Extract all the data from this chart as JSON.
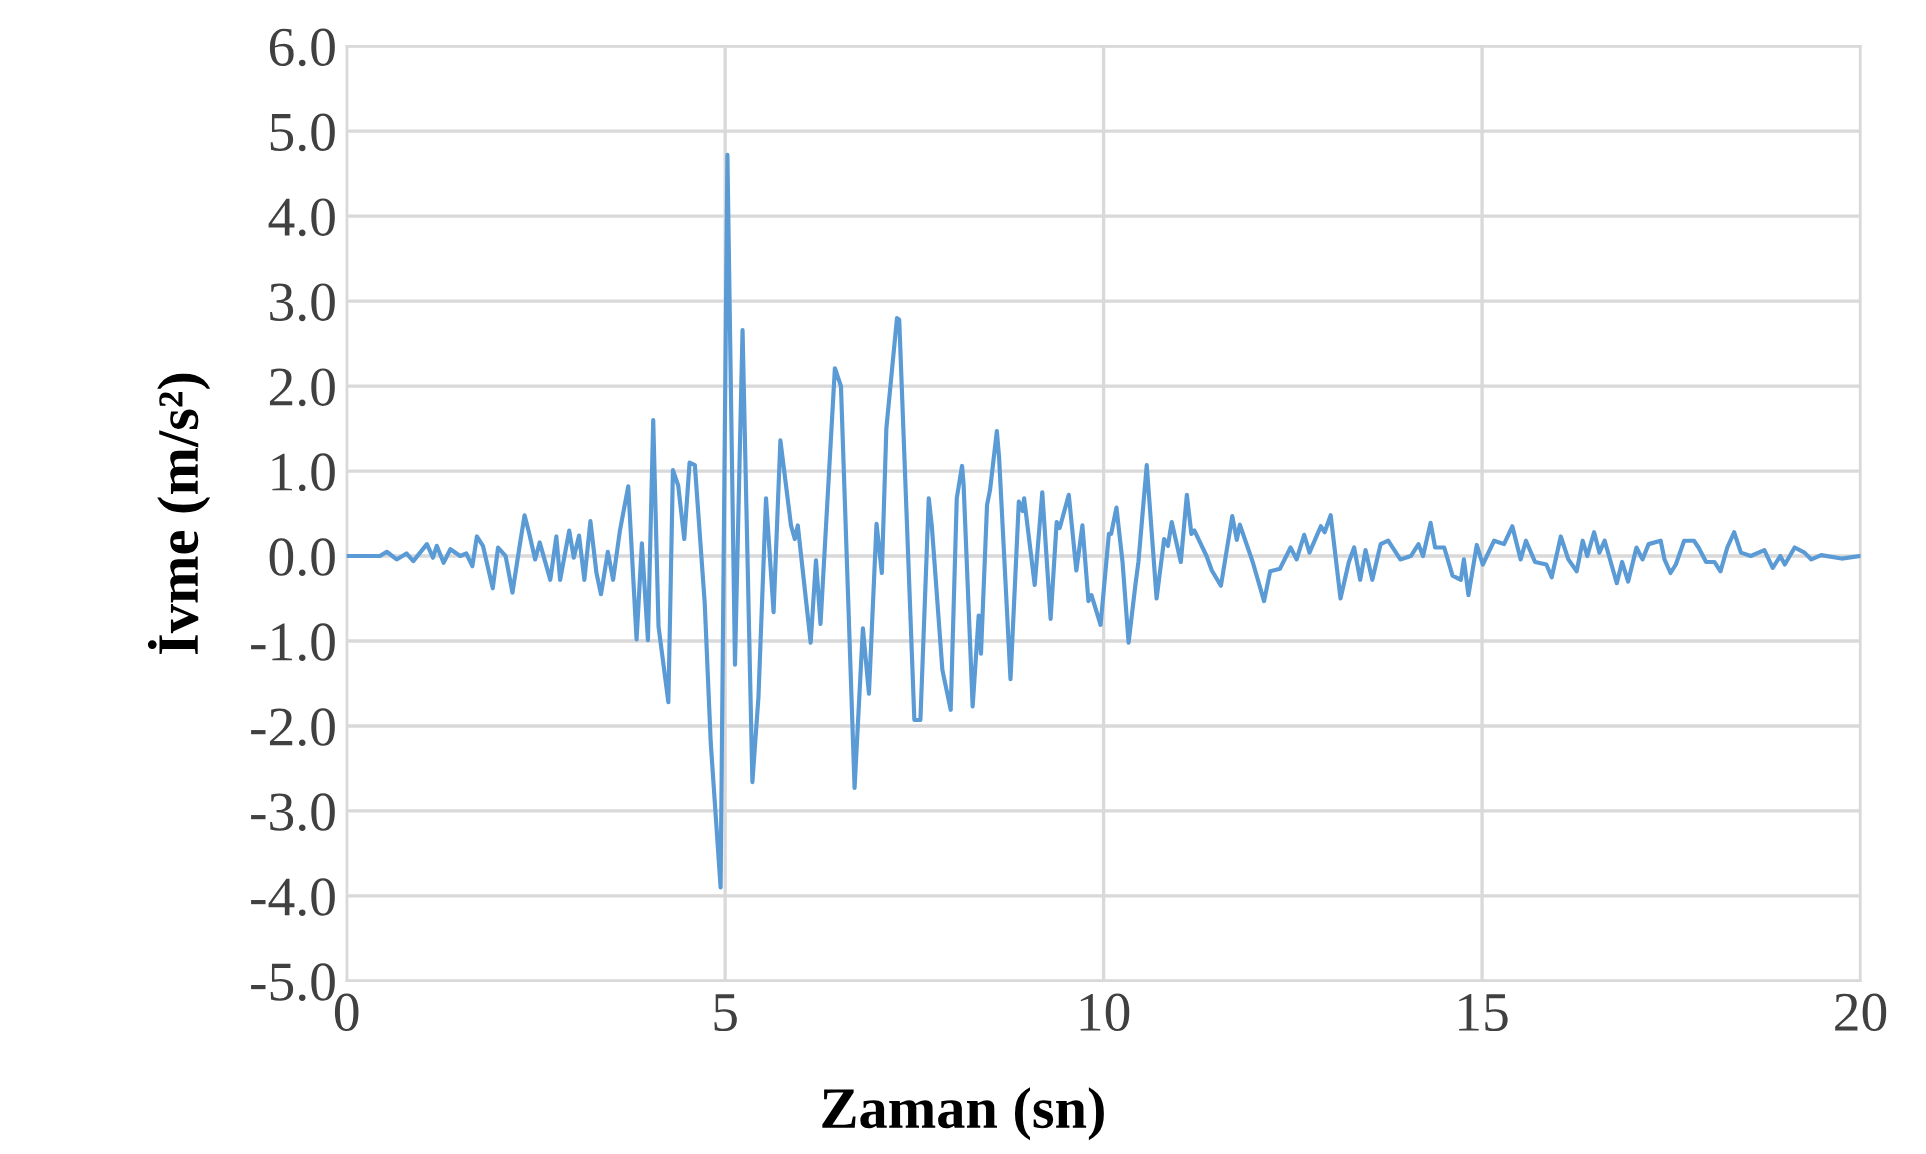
{
  "chart_data": {
    "type": "line",
    "xlabel": "Zaman (sn)",
    "ylabel": "İvme (m/s²)",
    "xlim": [
      0,
      20
    ],
    "xticks": [
      0,
      5,
      10,
      15,
      20
    ],
    "ylim": [
      -5,
      6
    ],
    "yticks": [
      {
        "value": -5,
        "label": "-5.0"
      },
      {
        "value": -4,
        "label": "-4.0"
      },
      {
        "value": -3,
        "label": "-3.0"
      },
      {
        "value": -2,
        "label": "-2.0"
      },
      {
        "value": -1,
        "label": "-1.0"
      },
      {
        "value": 0,
        "label": "0.0"
      },
      {
        "value": 1,
        "label": "1.0"
      },
      {
        "value": 2,
        "label": "2.0"
      },
      {
        "value": 3,
        "label": "3.0"
      },
      {
        "value": 4,
        "label": "4.0"
      },
      {
        "value": 5,
        "label": "5.0"
      },
      {
        "value": 6,
        "label": "6.0"
      }
    ],
    "grid": true,
    "marker": "none",
    "line_style": "solid",
    "x": [
      0,
      0.44,
      0.53,
      0.66,
      0.79,
      0.88,
      1.06,
      1.14,
      1.19,
      1.28,
      1.37,
      1.5,
      1.58,
      1.66,
      1.72,
      1.8,
      1.93,
      2.0,
      2.1,
      2.19,
      2.28,
      2.35,
      2.41,
      2.49,
      2.55,
      2.62,
      2.69,
      2.77,
      2.82,
      2.94,
      3.0,
      3.07,
      3.14,
      3.22,
      3.3,
      3.36,
      3.45,
      3.52,
      3.61,
      3.72,
      3.83,
      3.9,
      3.98,
      4.05,
      4.12,
      4.25,
      4.31,
      4.38,
      4.46,
      4.53,
      4.6,
      4.73,
      4.81,
      4.94,
      5.03,
      5.13,
      5.23,
      5.36,
      5.44,
      5.54,
      5.64,
      5.73,
      5.87,
      5.92,
      5.96,
      6.13,
      6.2,
      6.26,
      6.45,
      6.53,
      6.71,
      6.82,
      6.9,
      7.0,
      7.07,
      7.13,
      7.27,
      7.3,
      7.5,
      7.58,
      7.69,
      7.73,
      7.87,
      7.98,
      8.06,
      8.13,
      8.15,
      8.27,
      8.35,
      8.38,
      8.46,
      8.5,
      8.59,
      8.62,
      8.77,
      8.88,
      8.93,
      8.95,
      9.09,
      9.19,
      9.3,
      9.38,
      9.42,
      9.54,
      9.64,
      9.72,
      9.8,
      9.84,
      9.96,
      10.07,
      10.1,
      10.17,
      10.25,
      10.33,
      10.42,
      10.46,
      10.57,
      10.7,
      10.8,
      10.85,
      10.9,
      11.02,
      11.1,
      11.16,
      11.2,
      11.36,
      11.43,
      11.55,
      11.7,
      11.76,
      11.8,
      11.97,
      12.12,
      12.2,
      12.33,
      12.47,
      12.55,
      12.65,
      12.72,
      12.87,
      12.92,
      13.0,
      13.13,
      13.24,
      13.31,
      13.39,
      13.46,
      13.55,
      13.66,
      13.76,
      13.92,
      14.06,
      14.16,
      14.22,
      14.32,
      14.38,
      14.5,
      14.61,
      14.72,
      14.76,
      14.82,
      14.93,
      15.01,
      15.16,
      15.29,
      15.4,
      15.51,
      15.58,
      15.7,
      15.85,
      15.92,
      16.04,
      16.14,
      16.25,
      16.33,
      16.39,
      16.48,
      16.55,
      16.62,
      16.7,
      16.78,
      16.85,
      16.93,
      17.04,
      17.12,
      17.2,
      17.36,
      17.41,
      17.49,
      17.56,
      17.67,
      17.8,
      17.86,
      17.96,
      18.07,
      18.15,
      18.24,
      18.33,
      18.42,
      18.55,
      18.73,
      18.84,
      18.94,
      19.0,
      19.13,
      19.26,
      19.35,
      19.48,
      19.75,
      20
    ],
    "series": [
      {
        "color": "#5b9bd5",
        "values": [
          0,
          0.0,
          0.05,
          -0.04,
          0.03,
          -0.06,
          0.14,
          -0.02,
          0.12,
          -0.08,
          0.08,
          0.0,
          0.03,
          -0.12,
          0.23,
          0.12,
          -0.38,
          0.1,
          0.0,
          -0.43,
          0.09,
          0.48,
          0.27,
          -0.04,
          0.16,
          -0.06,
          -0.28,
          0.23,
          -0.28,
          0.3,
          -0.02,
          0.24,
          -0.28,
          0.41,
          -0.2,
          -0.45,
          0.05,
          -0.28,
          0.3,
          0.82,
          -0.98,
          0.15,
          -0.99,
          1.6,
          -0.83,
          -1.72,
          1.01,
          0.83,
          0.2,
          1.1,
          1.07,
          -0.55,
          -2.2,
          -3.9,
          4.72,
          -1.28,
          2.66,
          -2.66,
          -1.66,
          0.68,
          -0.66,
          1.36,
          0.36,
          0.2,
          0.36,
          -1.02,
          -0.05,
          -0.8,
          2.21,
          2.0,
          -2.73,
          -0.85,
          -1.62,
          0.38,
          -0.2,
          1.5,
          2.8,
          2.78,
          -1.93,
          -1.93,
          0.68,
          0.36,
          -1.34,
          -1.81,
          0.68,
          1.06,
          0.85,
          -1.77,
          -0.7,
          -1.15,
          0.6,
          0.78,
          1.47,
          1.15,
          -1.45,
          0.64,
          0.53,
          0.68,
          -0.34,
          0.75,
          -0.74,
          0.4,
          0.33,
          0.72,
          -0.17,
          0.36,
          -0.53,
          -0.46,
          -0.81,
          0.26,
          0.26,
          0.57,
          -0.07,
          -1.02,
          -0.34,
          -0.07,
          1.07,
          -0.5,
          0.2,
          0.12,
          0.4,
          -0.07,
          0.72,
          0.26,
          0.3,
          0.0,
          -0.17,
          -0.35,
          0.47,
          0.19,
          0.37,
          -0.07,
          -0.53,
          -0.18,
          -0.15,
          0.1,
          -0.04,
          0.25,
          0.04,
          0.35,
          0.28,
          0.48,
          -0.5,
          -0.07,
          0.1,
          -0.28,
          0.07,
          -0.28,
          0.14,
          0.18,
          -0.04,
          0.0,
          0.14,
          0.0,
          0.39,
          0.1,
          0.1,
          -0.23,
          -0.28,
          -0.04,
          -0.46,
          0.13,
          -0.1,
          0.18,
          0.14,
          0.35,
          -0.04,
          0.18,
          -0.07,
          -0.1,
          -0.25,
          0.23,
          -0.04,
          -0.18,
          0.18,
          0.0,
          0.28,
          0.04,
          0.18,
          -0.07,
          -0.32,
          -0.07,
          -0.3,
          0.1,
          -0.04,
          0.14,
          0.18,
          -0.04,
          -0.2,
          -0.1,
          0.18,
          0.18,
          0.1,
          -0.07,
          -0.07,
          -0.18,
          0.1,
          0.28,
          0.04,
          0.0,
          0.07,
          -0.14,
          0.0,
          -0.1,
          0.1,
          0.04,
          -0.04,
          0.01,
          -0.03,
          0.0
        ]
      }
    ]
  }
}
